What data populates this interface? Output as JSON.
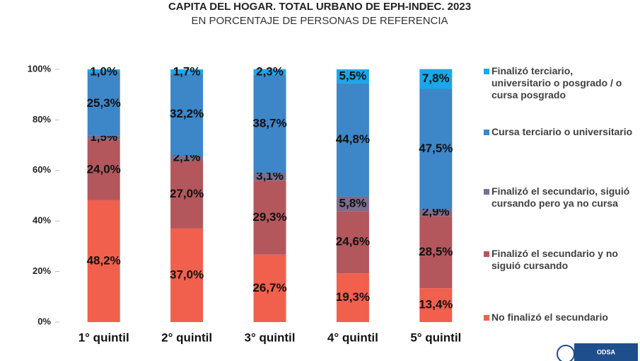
{
  "chart_data": {
    "type": "stacked_bar",
    "title": "CAPITA DEL HOGAR.  TOTAL URBANO DE EPH-INDEC. 2023",
    "subtitle": "EN PORCENTAJE DE PERSONAS DE REFERENCIA",
    "categories": [
      "1° quintil",
      "2° quintil",
      "3° quintil",
      "4° quintil",
      "5° quintil"
    ],
    "ylim": [
      0,
      100
    ],
    "yticks": [
      {
        "value": 0,
        "label": "0%"
      },
      {
        "value": 20,
        "label": "20%"
      },
      {
        "value": 40,
        "label": "40%"
      },
      {
        "value": 60,
        "label": "60%"
      },
      {
        "value": 80,
        "label": "80%"
      },
      {
        "value": 100,
        "label": "100%"
      }
    ],
    "legend": "right",
    "series": [
      {
        "name": "No finalizó el secundario",
        "color": "#f0604d",
        "values": [
          48.2,
          37.0,
          26.7,
          19.3,
          13.4
        ],
        "value_labels": [
          "48,2%",
          "37,0%",
          "26,7%",
          "19,3%",
          "13,4%"
        ]
      },
      {
        "name": "Finalizó el secundario y no siguió cursando",
        "color": "#b3575d",
        "values": [
          24.0,
          27.0,
          29.3,
          24.6,
          28.5
        ],
        "value_labels": [
          "24,0%",
          "27,0%",
          "29,3%",
          "24,6%",
          "28,5%"
        ]
      },
      {
        "name": "Finalizó el secundario, siguió cursando pero ya no cursa",
        "color": "#7a6d8e",
        "values": [
          1.5,
          2.1,
          3.1,
          5.8,
          2.9
        ],
        "value_labels": [
          "1,5%",
          "2,1%",
          "3,1%",
          "5,8%",
          "2,9%"
        ]
      },
      {
        "name": "Cursa terciario o universitario",
        "color": "#3d86c8",
        "values": [
          25.3,
          32.2,
          38.7,
          44.8,
          47.5
        ],
        "value_labels": [
          "25,3%",
          "32,2%",
          "38,7%",
          "44,8%",
          "47,5%"
        ]
      },
      {
        "name": "Finalizó terciario, universitario o posgrado / o cursa posgrado",
        "color": "#19a8ea",
        "values": [
          1.0,
          1.7,
          2.3,
          5.5,
          7.8
        ],
        "value_labels": [
          "1,0%",
          "1,7%",
          "2,3%",
          "5,5%",
          "7,8%"
        ]
      }
    ]
  },
  "logo_text": "ODSA"
}
